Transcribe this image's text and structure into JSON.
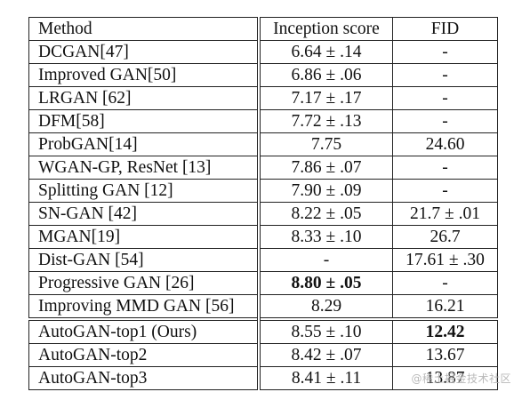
{
  "table": {
    "headers": [
      "Method",
      "Inception score",
      "FID"
    ],
    "rows": [
      {
        "method": "DCGAN[47]",
        "is": "6.64 ± .14",
        "fid": "-"
      },
      {
        "method": "Improved GAN[50]",
        "is": "6.86 ± .06",
        "fid": "-"
      },
      {
        "method": "LRGAN [62]",
        "is": "7.17 ± .17",
        "fid": "-"
      },
      {
        "method": "DFM[58]",
        "is": "7.72 ± .13",
        "fid": "-"
      },
      {
        "method": "ProbGAN[14]",
        "is": "7.75",
        "fid": "24.60"
      },
      {
        "method": "WGAN-GP, ResNet [13]",
        "is": "7.86 ± .07",
        "fid": "-"
      },
      {
        "method": "Splitting GAN [12]",
        "is": "7.90 ± .09",
        "fid": "-"
      },
      {
        "method": "SN-GAN [42]",
        "is": "8.22 ± .05",
        "fid": "21.7 ± .01"
      },
      {
        "method": "MGAN[19]",
        "is": "8.33 ± .10",
        "fid": "26.7"
      },
      {
        "method": "Dist-GAN [54]",
        "is": "-",
        "fid": "17.61 ± .30"
      },
      {
        "method": "Progressive GAN [26]",
        "is": "8.80 ± .05",
        "fid": "-",
        "is_bold": true
      },
      {
        "method": "Improving MMD GAN [56]",
        "is": "8.29",
        "fid": "16.21"
      },
      {
        "method": "AutoGAN-top1 (Ours)",
        "is": "8.55 ± .10",
        "fid": "12.42",
        "fid_bold": true,
        "separator_above": true
      },
      {
        "method": "AutoGAN-top2",
        "is": "8.42 ± .07",
        "fid": "13.67"
      },
      {
        "method": "AutoGAN-top3",
        "is": "8.41 ± .11",
        "fid": "13.87"
      }
    ]
  },
  "watermark": "@稀土掘金技术社区"
}
